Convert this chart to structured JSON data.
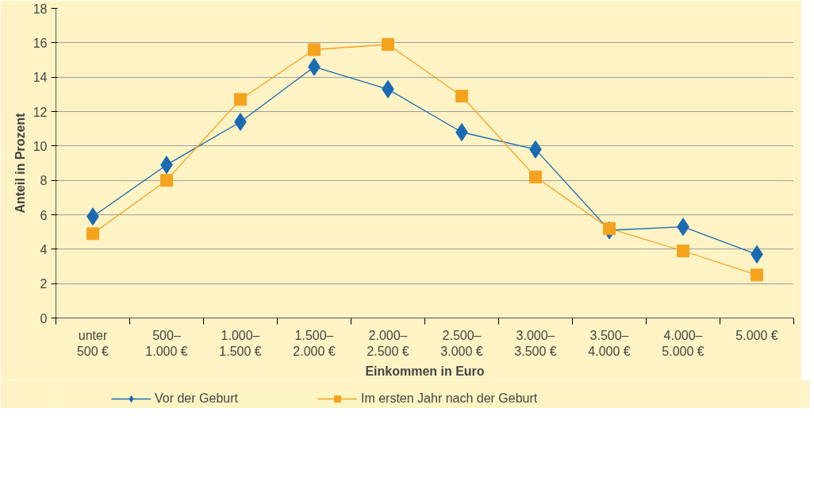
{
  "chart_data": {
    "type": "line",
    "xlabel": "Einkommen in Euro",
    "ylabel": "Anteil in Prozent",
    "categories": [
      "unter\n500 €",
      "500–\n1.000 €",
      "1.000–\n1.500 €",
      "1.500–\n2.000 €",
      "2.000–\n2.500 €",
      "2.500–\n3.000 €",
      "3.000–\n3.500 €",
      "3.500–\n4.000 €",
      "4.000–\n5.000 €",
      "5.000 €"
    ],
    "series": [
      {
        "name": "Vor der Geburt",
        "color": "#1a6bb3",
        "marker": "diamond",
        "values": [
          5.9,
          8.9,
          11.4,
          14.6,
          13.3,
          10.8,
          9.8,
          5.1,
          5.3,
          3.7
        ]
      },
      {
        "name": "Im ersten Jahr nach der Geburt",
        "color": "#f5a31f",
        "marker": "square",
        "values": [
          4.9,
          8.0,
          12.7,
          15.6,
          15.9,
          12.9,
          8.2,
          5.2,
          3.9,
          2.5
        ]
      }
    ],
    "ylim": [
      0,
      18
    ],
    "yticks": [
      0,
      2,
      4,
      6,
      8,
      10,
      12,
      14,
      16,
      18
    ],
    "grid": "y",
    "legend": "bottom",
    "line_style": "solid"
  }
}
